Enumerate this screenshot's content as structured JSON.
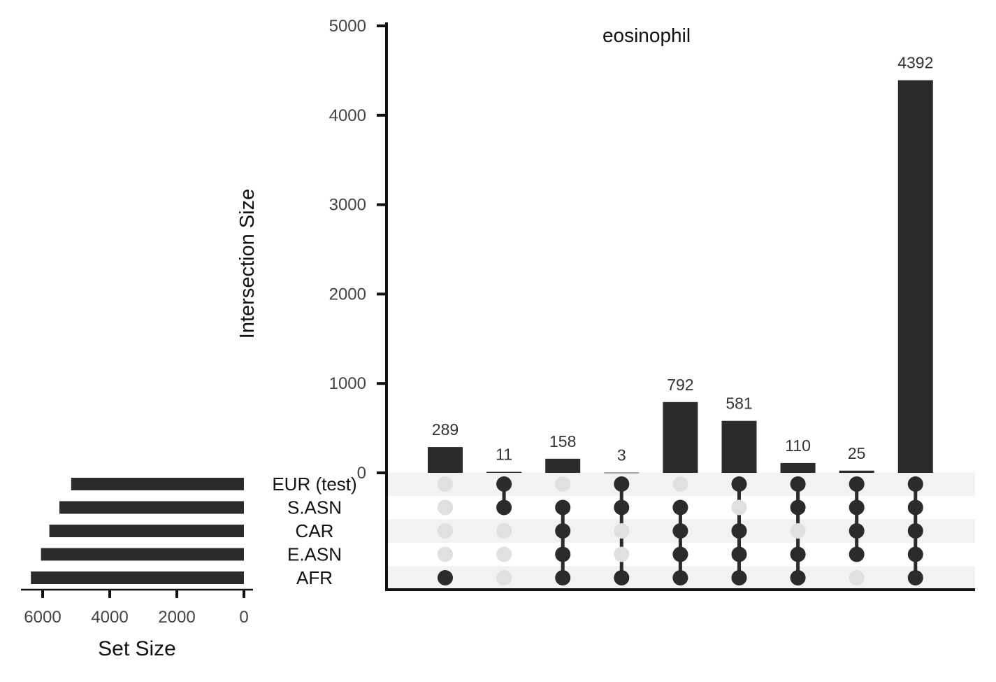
{
  "chart_data": {
    "type": "upset",
    "title": "eosinophil",
    "intersections": {
      "ylabel": "Intersection Size",
      "ylim": [
        0,
        5000
      ],
      "yticks": [
        0,
        1000,
        2000,
        3000,
        4000,
        5000
      ],
      "ytick_labels": [
        "0",
        "1000",
        "2000",
        "3000",
        "4000",
        "5000"
      ],
      "values": [
        289,
        11,
        158,
        3,
        792,
        581,
        110,
        25,
        4392
      ],
      "value_labels": [
        "289",
        "11",
        "158",
        "3",
        "792",
        "581",
        "110",
        "25",
        "4392"
      ]
    },
    "sets": {
      "names": [
        "EUR (test)",
        "S.ASN",
        "CAR",
        "E.ASN",
        "AFR"
      ],
      "sizes": [
        5150,
        5500,
        5800,
        6050,
        6350
      ],
      "xlabel": "Set Size",
      "xlim": [
        0,
        6500
      ],
      "xticks": [
        6000,
        4000,
        2000,
        0
      ],
      "xtick_labels": [
        "6000",
        "4000",
        "2000",
        "0"
      ]
    },
    "membership": [
      [
        4
      ],
      [
        0,
        1
      ],
      [
        1,
        2,
        3,
        4
      ],
      [
        0,
        1,
        4
      ],
      [
        1,
        2,
        3,
        4
      ],
      [
        0,
        2,
        3,
        4
      ],
      [
        0,
        1,
        3,
        4
      ],
      [
        0,
        1,
        2,
        3
      ],
      [
        0,
        1,
        2,
        3,
        4
      ]
    ],
    "colors": {
      "bar": "#2b2b2b",
      "dot_active": "#2b2b2b",
      "dot_inactive": "#e0e0e0",
      "stripe": "#f2f2f2",
      "axis": "#111111",
      "tick_label": "#444444"
    }
  }
}
